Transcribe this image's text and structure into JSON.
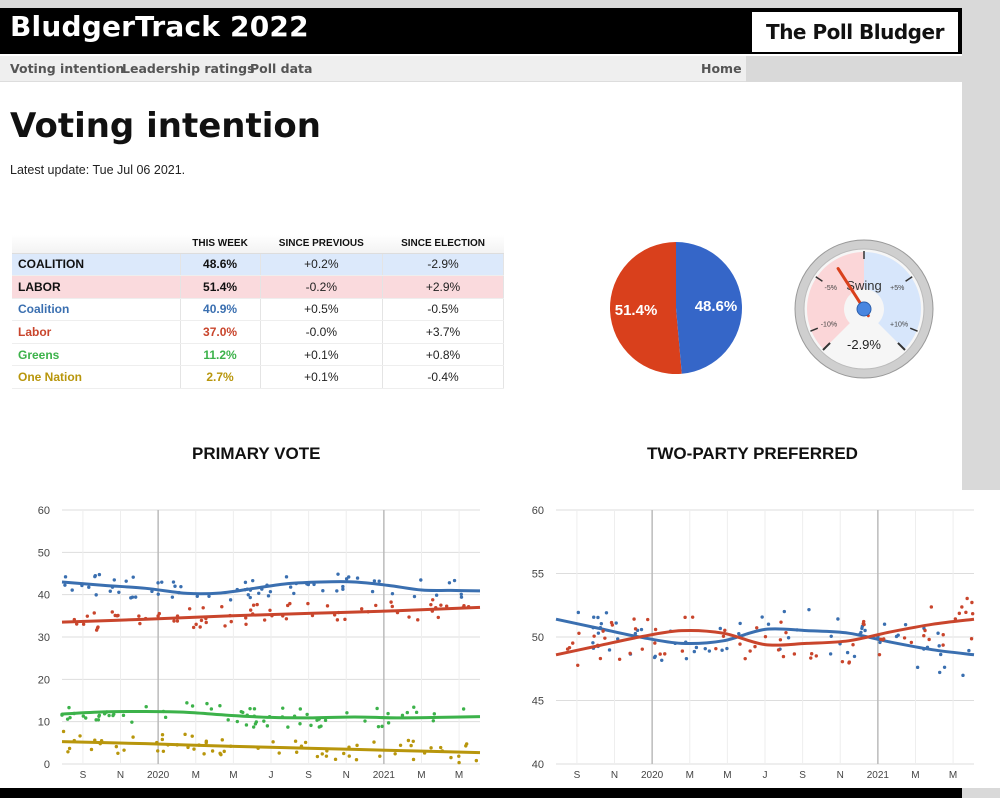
{
  "header": {
    "site_title": "BludgerTrack 2022",
    "brand": "The Poll Bludger"
  },
  "nav": {
    "items": [
      "Voting intention",
      "Leadership ratings",
      "Poll data"
    ],
    "home": "Home"
  },
  "page_title": "Voting intention",
  "update_prefix": "Latest update: ",
  "update_date": "Tue Jul 06 2021.",
  "table": {
    "headers": [
      "",
      "THIS WEEK",
      "SINCE PREVIOUS",
      "SINCE ELECTION"
    ],
    "rows": [
      {
        "name": "COALITION",
        "this_week": "48.6%",
        "since_previous": "+0.2%",
        "since_election": "-2.9%",
        "color": "#111111",
        "style": "coal"
      },
      {
        "name": "LABOR",
        "this_week": "51.4%",
        "since_previous": "-0.2%",
        "since_election": "+2.9%",
        "color": "#111111",
        "style": "lab"
      },
      {
        "name": "Coalition",
        "this_week": "40.9%",
        "since_previous": "+0.5%",
        "since_election": "-0.5%",
        "color": "#3a6fb0",
        "style": ""
      },
      {
        "name": "Labor",
        "this_week": "37.0%",
        "since_previous": "-0.0%",
        "since_election": "+3.7%",
        "color": "#c9452c",
        "style": ""
      },
      {
        "name": "Greens",
        "this_week": "11.2%",
        "since_previous": "+0.1%",
        "since_election": "+0.8%",
        "color": "#3cb24a",
        "style": ""
      },
      {
        "name": "One Nation",
        "this_week": "2.7%",
        "since_previous": "+0.1%",
        "since_election": "-0.4%",
        "color": "#b8960c",
        "style": ""
      }
    ]
  },
  "colors": {
    "coalition": "#3566c8",
    "labor": "#d9401c",
    "greens": "#3cb24a",
    "one_nation": "#b8960c",
    "coalition_line": "#3a6fb0",
    "labor_line": "#c9452c"
  },
  "gauge": {
    "label": "Swing",
    "value": "-2.9%",
    "tick_labels": [
      "-5%",
      "+5%",
      "-10%",
      "+10%"
    ],
    "value_num": -2.9,
    "range": [
      -12,
      12
    ]
  },
  "chart_data": [
    {
      "type": "pie",
      "title": "",
      "slices": [
        {
          "label": "51.4%",
          "value": 51.4,
          "color": "#d9401c"
        },
        {
          "label": "48.6%",
          "value": 48.6,
          "color": "#3566c8"
        }
      ]
    },
    {
      "type": "line",
      "title": "PRIMARY VOTE",
      "xlabel": "",
      "ylabel": "",
      "ylim": [
        0,
        60
      ],
      "yticks": [
        "0",
        "10",
        "20",
        "30",
        "40",
        "50",
        "60"
      ],
      "xticks": [
        "S",
        "N",
        "2020",
        "M",
        "M",
        "J",
        "S",
        "N",
        "2021",
        "M",
        "M"
      ],
      "grid": true,
      "series": [
        {
          "color": "#3a6fb0",
          "x": [
            0,
            10,
            20,
            30,
            38,
            46,
            54,
            62,
            70,
            78,
            86,
            93,
            100
          ],
          "y": [
            43,
            42.2,
            41.5,
            40.3,
            40.4,
            41.5,
            42.6,
            43,
            43,
            42.2,
            41.1,
            41,
            40.9
          ]
        },
        {
          "color": "#c9452c",
          "x": [
            0,
            20,
            40,
            60,
            80,
            100
          ],
          "y": [
            33.5,
            34.2,
            35,
            35.6,
            36.2,
            37
          ]
        },
        {
          "color": "#3cb24a",
          "x": [
            0,
            10,
            20,
            30,
            40,
            50,
            60,
            70,
            80,
            90,
            100
          ],
          "y": [
            11.8,
            12.3,
            12.4,
            12.2,
            11.5,
            11,
            10.9,
            11.1,
            10.9,
            11,
            11.2
          ]
        },
        {
          "color": "#b8960c",
          "x": [
            0,
            20,
            40,
            60,
            80,
            100
          ],
          "y": [
            5.3,
            4.8,
            4.2,
            3.7,
            3.2,
            2.7
          ]
        }
      ]
    },
    {
      "type": "line",
      "title": "TWO-PARTY PREFERRED",
      "xlabel": "",
      "ylabel": "",
      "ylim": [
        40,
        60
      ],
      "yticks": [
        "40",
        "45",
        "50",
        "55",
        "60"
      ],
      "xticks": [
        "S",
        "N",
        "2020",
        "M",
        "M",
        "J",
        "S",
        "N",
        "2021",
        "M",
        "M"
      ],
      "grid": true,
      "series": [
        {
          "color": "#3a6fb0",
          "x": [
            0,
            10,
            20,
            30,
            40,
            50,
            60,
            70,
            80,
            90,
            100
          ],
          "y": [
            51.4,
            50.7,
            50,
            49.5,
            49.7,
            50.6,
            50.5,
            50.3,
            49.6,
            49,
            48.6
          ]
        },
        {
          "color": "#c9452c",
          "x": [
            0,
            10,
            20,
            30,
            40,
            50,
            60,
            70,
            80,
            90,
            100
          ],
          "y": [
            48.6,
            49.3,
            50,
            50.5,
            50.3,
            49.4,
            49.5,
            49.7,
            50.4,
            51,
            51.4
          ]
        }
      ]
    }
  ]
}
